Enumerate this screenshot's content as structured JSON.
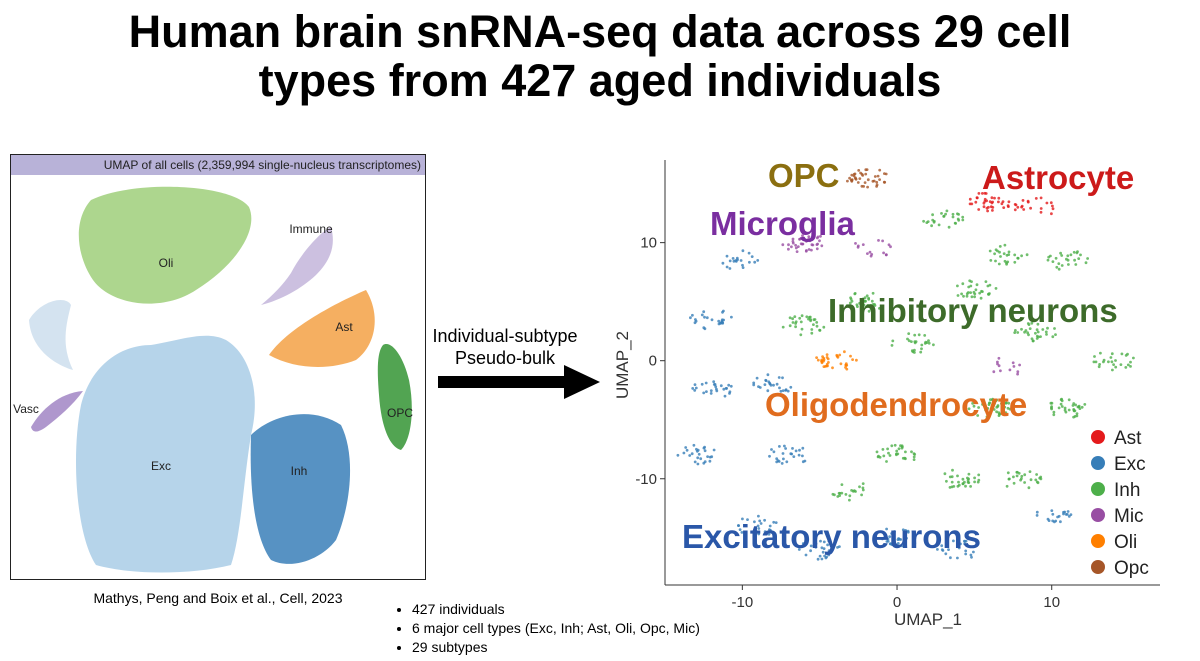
{
  "title_line1": "Human brain snRNA-seq data across 29 cell",
  "title_line2": "types from 427 aged individuals",
  "left_panel": {
    "header": "UMAP of all cells (2,359,994 single-nucleus transcriptomes)",
    "clusters": [
      {
        "label": "Oli",
        "color": "#9fcf7a"
      },
      {
        "label": "Immune",
        "color": "#c6b9dd"
      },
      {
        "label": "Ast",
        "color": "#f4a650"
      },
      {
        "label": "OPC",
        "color": "#3f9a3f"
      },
      {
        "label": "Vasc",
        "color": "#a68cc8"
      },
      {
        "label": "Exc",
        "color": "#a9cde6"
      },
      {
        "label": "Inh",
        "color": "#3a7fb8"
      }
    ],
    "credit": "Mathys, Peng and Boix et al., Cell, 2023"
  },
  "arrow_label_line1": "Individual-subtype",
  "arrow_label_line2": "Pseudo-bulk",
  "right_chart": {
    "overlay_labels": [
      {
        "text": "OPC",
        "color": "#8b6f10"
      },
      {
        "text": "Astrocyte",
        "color": "#cc1a1a"
      },
      {
        "text": "Microglia",
        "color": "#7a2ea0"
      },
      {
        "text": "Inhibitory neurons",
        "color": "#3d6b2a"
      },
      {
        "text": "Oligodendrocyte",
        "color": "#e06c1e"
      },
      {
        "text": "Excitatory neurons",
        "color": "#2a57a8"
      }
    ]
  },
  "chart_data": {
    "type": "scatter",
    "title": "",
    "xlabel": "UMAP_1",
    "ylabel": "UMAP_2",
    "xlim": [
      -15,
      17
    ],
    "ylim": [
      -19,
      17
    ],
    "x_ticks": [
      -10,
      0,
      10
    ],
    "y_ticks": [
      -10,
      0,
      10
    ],
    "legend_position": "right",
    "legend": [
      {
        "name": "Ast",
        "color": "#e41a1c"
      },
      {
        "name": "Exc",
        "color": "#377eb8"
      },
      {
        "name": "Inh",
        "color": "#4daf4a"
      },
      {
        "name": "Mic",
        "color": "#984ea3"
      },
      {
        "name": "Oli",
        "color": "#ff7f00"
      },
      {
        "name": "Opc",
        "color": "#a65628"
      }
    ],
    "clusters": [
      {
        "type": "Opc",
        "x": -2,
        "y": 15.5,
        "n": 40
      },
      {
        "type": "Ast",
        "x": 6,
        "y": 13.5,
        "n": 35
      },
      {
        "type": "Ast",
        "x": 9,
        "y": 13,
        "n": 20
      },
      {
        "type": "Mic",
        "x": -6,
        "y": 10,
        "n": 35
      },
      {
        "type": "Mic",
        "x": -1.5,
        "y": 9.5,
        "n": 15
      },
      {
        "type": "Exc",
        "x": -10,
        "y": 8.5,
        "n": 20
      },
      {
        "type": "Exc",
        "x": -12,
        "y": 3.5,
        "n": 25
      },
      {
        "type": "Inh",
        "x": 3,
        "y": 12,
        "n": 25
      },
      {
        "type": "Inh",
        "x": 7,
        "y": 9,
        "n": 25
      },
      {
        "type": "Inh",
        "x": 11,
        "y": 8.5,
        "n": 25
      },
      {
        "type": "Inh",
        "x": 5,
        "y": 6,
        "n": 30
      },
      {
        "type": "Inh",
        "x": -2,
        "y": 5,
        "n": 30
      },
      {
        "type": "Inh",
        "x": -6,
        "y": 3,
        "n": 30
      },
      {
        "type": "Inh",
        "x": 9,
        "y": 2.5,
        "n": 30
      },
      {
        "type": "Inh",
        "x": 14,
        "y": 0,
        "n": 25
      },
      {
        "type": "Inh",
        "x": 1,
        "y": 1.5,
        "n": 25
      },
      {
        "type": "Inh",
        "x": 6,
        "y": -4,
        "n": 40
      },
      {
        "type": "Inh",
        "x": 11,
        "y": -4,
        "n": 35
      },
      {
        "type": "Inh",
        "x": 0,
        "y": -8,
        "n": 30
      },
      {
        "type": "Inh",
        "x": 4,
        "y": -10,
        "n": 30
      },
      {
        "type": "Inh",
        "x": 8,
        "y": -10,
        "n": 25
      },
      {
        "type": "Inh",
        "x": -3,
        "y": -11,
        "n": 20
      },
      {
        "type": "Oli",
        "x": -4,
        "y": 0,
        "n": 35
      },
      {
        "type": "Mic",
        "x": 7,
        "y": -0.5,
        "n": 12
      },
      {
        "type": "Exc",
        "x": -8,
        "y": -2,
        "n": 25
      },
      {
        "type": "Exc",
        "x": -12,
        "y": -2.5,
        "n": 25
      },
      {
        "type": "Exc",
        "x": -13,
        "y": -8,
        "n": 25
      },
      {
        "type": "Exc",
        "x": -7,
        "y": -8,
        "n": 25
      },
      {
        "type": "Exc",
        "x": -9,
        "y": -14,
        "n": 25
      },
      {
        "type": "Exc",
        "x": -5,
        "y": -16,
        "n": 25
      },
      {
        "type": "Exc",
        "x": 0,
        "y": -15,
        "n": 25
      },
      {
        "type": "Exc",
        "x": 4,
        "y": -16,
        "n": 20
      },
      {
        "type": "Exc",
        "x": 10,
        "y": -13,
        "n": 20
      }
    ]
  },
  "bullets": [
    "427 individuals",
    "6 major cell types (Exc, Inh; Ast, Oli, Opc, Mic)",
    "29 subtypes"
  ]
}
